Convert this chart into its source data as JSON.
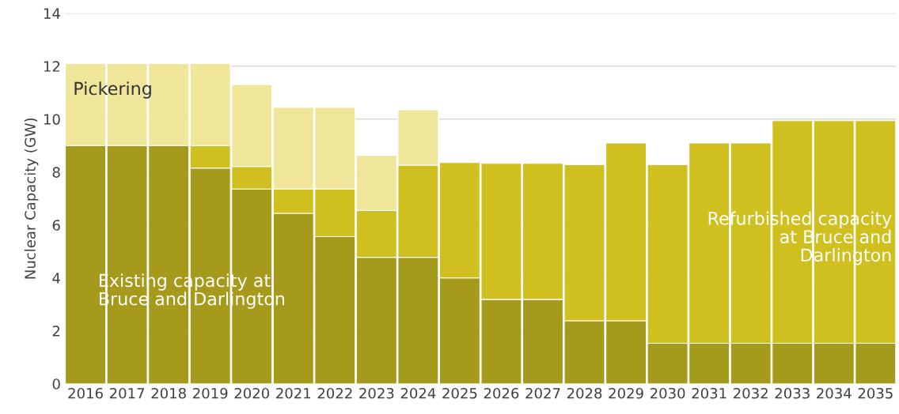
{
  "chart_data": {
    "type": "bar",
    "stacked": true,
    "ylabel": "Nuclear Capacity (GW)",
    "categories": [
      "2016",
      "2017",
      "2018",
      "2019",
      "2020",
      "2021",
      "2022",
      "2023",
      "2024",
      "2025",
      "2026",
      "2027",
      "2028",
      "2029",
      "2030",
      "2031",
      "2032",
      "2033",
      "2034",
      "2035"
    ],
    "series": [
      {
        "name": "Existing capacity at\nBruce and Darlington",
        "color": "#a59a1b",
        "values": [
          9.0,
          9.0,
          9.0,
          8.15,
          7.36,
          6.44,
          5.56,
          4.78,
          4.78,
          4.0,
          3.19,
          3.19,
          2.38,
          2.38,
          1.53,
          1.53,
          1.53,
          1.53,
          1.53,
          1.53
        ]
      },
      {
        "name": "Refurbished capacity\nat Bruce and\nDarlington",
        "color": "#cfbf1f",
        "values": [
          0,
          0,
          0,
          0.85,
          0.85,
          0.92,
          1.8,
          1.77,
          3.48,
          4.36,
          5.14,
          5.14,
          5.9,
          6.72,
          6.75,
          7.57,
          7.57,
          8.41,
          8.41,
          8.41
        ]
      },
      {
        "name": "Pickering",
        "color": "#efe69a",
        "values": [
          3.1,
          3.1,
          3.1,
          3.1,
          3.1,
          3.08,
          3.08,
          2.08,
          2.09,
          0,
          0,
          0,
          0,
          0,
          0,
          0,
          0,
          0,
          0,
          0
        ]
      }
    ],
    "ylim": [
      0,
      14
    ],
    "yticks": [
      0,
      2,
      4,
      6,
      8,
      10,
      12,
      14
    ],
    "grid": "y",
    "legend": false
  }
}
